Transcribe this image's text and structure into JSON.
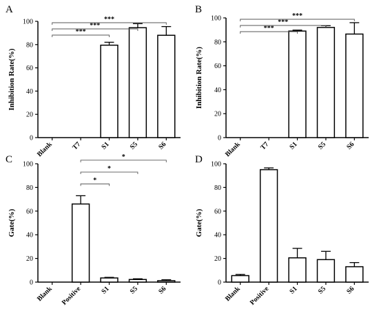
{
  "chart_data": [
    {
      "panel": "A",
      "type": "bar",
      "categories": [
        "Blank",
        "T7",
        "S1",
        "S5",
        "S6"
      ],
      "values": [
        0,
        0,
        79.5,
        94.5,
        88
      ],
      "errors": [
        0,
        0,
        2.5,
        3.5,
        7.5
      ],
      "title": "",
      "xlabel": "",
      "ylabel": "Inhibition Rate(%)",
      "ylim": [
        0,
        100
      ],
      "yticks": [
        0,
        20,
        40,
        60,
        80,
        100
      ],
      "significance": [
        {
          "from": "Blank",
          "to": "S1",
          "label": "***"
        },
        {
          "from": "Blank",
          "to": "S5",
          "label": "***"
        },
        {
          "from": "Blank",
          "to": "S6",
          "label": "***"
        }
      ]
    },
    {
      "panel": "B",
      "type": "bar",
      "categories": [
        "Blank",
        "T7",
        "S1",
        "S5",
        "S6"
      ],
      "values": [
        0,
        0,
        89,
        92,
        86.5
      ],
      "errors": [
        0,
        0,
        0.8,
        1.5,
        9.5
      ],
      "title": "",
      "xlabel": "",
      "ylabel": "Inhibition Rate(%)",
      "ylim": [
        0,
        100
      ],
      "yticks": [
        0,
        20,
        40,
        60,
        80,
        100
      ],
      "significance": [
        {
          "from": "Blank",
          "to": "S1",
          "label": "***"
        },
        {
          "from": "Blank",
          "to": "S5",
          "label": "***"
        },
        {
          "from": "Blank",
          "to": "S6",
          "label": "***"
        }
      ]
    },
    {
      "panel": "C",
      "type": "bar",
      "categories": [
        "Blank",
        "Positive",
        "S1",
        "S5",
        "S6"
      ],
      "values": [
        0,
        66,
        3.5,
        2.2,
        1.2
      ],
      "errors": [
        0,
        7,
        0.5,
        0.6,
        0.8
      ],
      "title": "",
      "xlabel": "",
      "ylabel": "Gate(%)",
      "ylim": [
        0,
        100
      ],
      "yticks": [
        0,
        20,
        40,
        60,
        80,
        100
      ],
      "significance": [
        {
          "from": "Positive",
          "to": "S1",
          "label": "*"
        },
        {
          "from": "Positive",
          "to": "S5",
          "label": "*"
        },
        {
          "from": "Positive",
          "to": "S6",
          "label": "*"
        }
      ]
    },
    {
      "panel": "D",
      "type": "bar",
      "categories": [
        "Blank",
        "Positive",
        "S1",
        "S5",
        "S6"
      ],
      "values": [
        5.5,
        95,
        20.5,
        19,
        13
      ],
      "errors": [
        1,
        1.5,
        8,
        7,
        3.5
      ],
      "title": "",
      "xlabel": "",
      "ylabel": "Gate(%)",
      "ylim": [
        0,
        100
      ],
      "yticks": [
        0,
        20,
        40,
        60,
        80,
        100
      ],
      "significance": []
    }
  ]
}
